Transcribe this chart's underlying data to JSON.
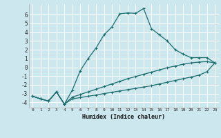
{
  "xlabel": "Humidex (Indice chaleur)",
  "bg_color": "#cce8ee",
  "grid_color": "#ffffff",
  "line_color": "#1a6b6b",
  "xlim": [
    -0.5,
    23.5
  ],
  "ylim": [
    -4.6,
    7.2
  ],
  "xticks": [
    0,
    1,
    2,
    3,
    4,
    5,
    6,
    7,
    8,
    9,
    10,
    11,
    12,
    13,
    14,
    15,
    16,
    17,
    18,
    19,
    20,
    21,
    22,
    23
  ],
  "yticks": [
    -4,
    -3,
    -2,
    -1,
    0,
    1,
    2,
    3,
    4,
    5,
    6
  ],
  "line1_x": [
    0,
    1,
    2,
    3,
    4,
    5,
    6,
    7,
    8,
    9,
    10,
    11,
    12,
    13,
    14,
    15,
    16,
    17,
    18,
    19,
    20,
    21,
    22,
    23
  ],
  "line1_y": [
    -3.3,
    -3.6,
    -3.85,
    -2.8,
    -4.2,
    -2.6,
    -0.4,
    1.0,
    2.2,
    3.7,
    4.6,
    6.1,
    6.2,
    6.15,
    6.7,
    4.4,
    3.7,
    3.0,
    2.0,
    1.5,
    1.1,
    1.1,
    1.1,
    0.5
  ],
  "line2_x": [
    0,
    1,
    2,
    3,
    4,
    5,
    6,
    7,
    8,
    9,
    10,
    11,
    12,
    13,
    14,
    15,
    16,
    17,
    18,
    19,
    20,
    21,
    22,
    23
  ],
  "line2_y": [
    -3.3,
    -3.6,
    -3.85,
    -2.8,
    -4.2,
    -3.4,
    -3.1,
    -2.8,
    -2.5,
    -2.2,
    -1.9,
    -1.6,
    -1.3,
    -1.05,
    -0.8,
    -0.55,
    -0.3,
    -0.05,
    0.15,
    0.35,
    0.5,
    0.6,
    0.65,
    0.5
  ],
  "line3_x": [
    0,
    1,
    2,
    3,
    4,
    5,
    6,
    7,
    8,
    9,
    10,
    11,
    12,
    13,
    14,
    15,
    16,
    17,
    18,
    19,
    20,
    21,
    22,
    23
  ],
  "line3_y": [
    -3.3,
    -3.6,
    -3.85,
    -2.8,
    -4.2,
    -3.6,
    -3.45,
    -3.3,
    -3.15,
    -3.0,
    -2.85,
    -2.7,
    -2.55,
    -2.4,
    -2.25,
    -2.1,
    -1.9,
    -1.7,
    -1.5,
    -1.3,
    -1.1,
    -0.9,
    -0.5,
    0.5
  ]
}
